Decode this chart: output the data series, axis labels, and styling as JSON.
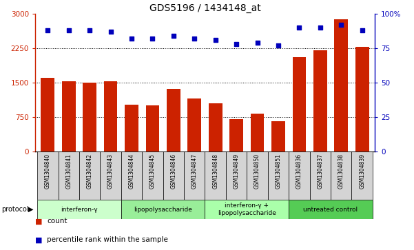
{
  "title": "GDS5196 / 1434148_at",
  "samples": [
    "GSM1304840",
    "GSM1304841",
    "GSM1304842",
    "GSM1304843",
    "GSM1304844",
    "GSM1304845",
    "GSM1304846",
    "GSM1304847",
    "GSM1304848",
    "GSM1304849",
    "GSM1304850",
    "GSM1304851",
    "GSM1304836",
    "GSM1304837",
    "GSM1304838",
    "GSM1304839"
  ],
  "counts": [
    1600,
    1520,
    1500,
    1520,
    1020,
    1000,
    1360,
    1150,
    1050,
    700,
    820,
    650,
    2050,
    2200,
    2880,
    2280
  ],
  "percentile_ranks": [
    88,
    88,
    88,
    87,
    82,
    82,
    84,
    82,
    81,
    78,
    79,
    77,
    90,
    90,
    92,
    88
  ],
  "bar_color": "#cc2200",
  "dot_color": "#0000bb",
  "left_yticks": [
    0,
    750,
    1500,
    2250,
    3000
  ],
  "right_yticks": [
    0,
    25,
    50,
    75,
    100
  ],
  "ylim_left": [
    0,
    3000
  ],
  "ylim_right": [
    0,
    100
  ],
  "groups": [
    {
      "label": "interferon-γ",
      "start": 0,
      "end": 4,
      "color": "#ccffcc"
    },
    {
      "label": "lipopolysaccharide",
      "start": 4,
      "end": 8,
      "color": "#99ee99"
    },
    {
      "label": "interferon-γ +\nlipopolysaccharide",
      "start": 8,
      "end": 12,
      "color": "#aaffaa"
    },
    {
      "label": "untreated control",
      "start": 12,
      "end": 16,
      "color": "#55cc55"
    }
  ],
  "legend_count_color": "#cc2200",
  "legend_dot_color": "#0000bb",
  "cell_color": "#d4d4d4",
  "title_fontsize": 10
}
